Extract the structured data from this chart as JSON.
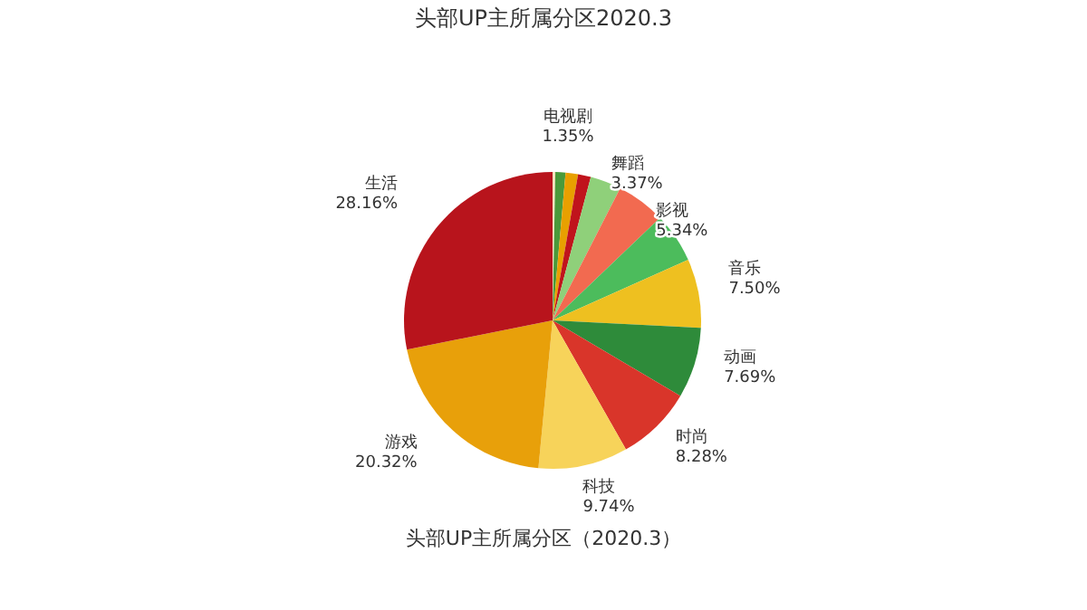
{
  "chart_data": {
    "type": "pie",
    "title": "头部UP主所属分区2020.3",
    "categories": [
      null,
      null,
      "电视剧",
      null,
      "舞蹈",
      "影视",
      null,
      "音乐",
      "动画",
      "时尚",
      "科技",
      "游戏",
      "生活"
    ],
    "values": [
      0.3,
      1.1,
      1.35,
      1.4,
      3.37,
      5.34,
      5.45,
      7.5,
      7.69,
      8.28,
      9.74,
      20.32,
      28.16
    ],
    "value_labels": [
      null,
      null,
      "1.35%",
      null,
      "3.37%",
      "5.34%",
      null,
      "7.50%",
      "7.69%",
      "8.28%",
      "9.74%",
      "20.32%",
      "28.16%"
    ],
    "colors": [
      "#f3e3bd",
      "#4a9a3a",
      "#e8a000",
      "#c0141c",
      "#8fd07a",
      "#f26a50",
      "#4cbc5c",
      "#eec020",
      "#2e8b3a",
      "#d9352a",
      "#f7d35a",
      "#e8a00a",
      "#b8141c"
    ],
    "annotations": [
      "头部UP主所属分区（2020.3）"
    ],
    "legend": false
  }
}
